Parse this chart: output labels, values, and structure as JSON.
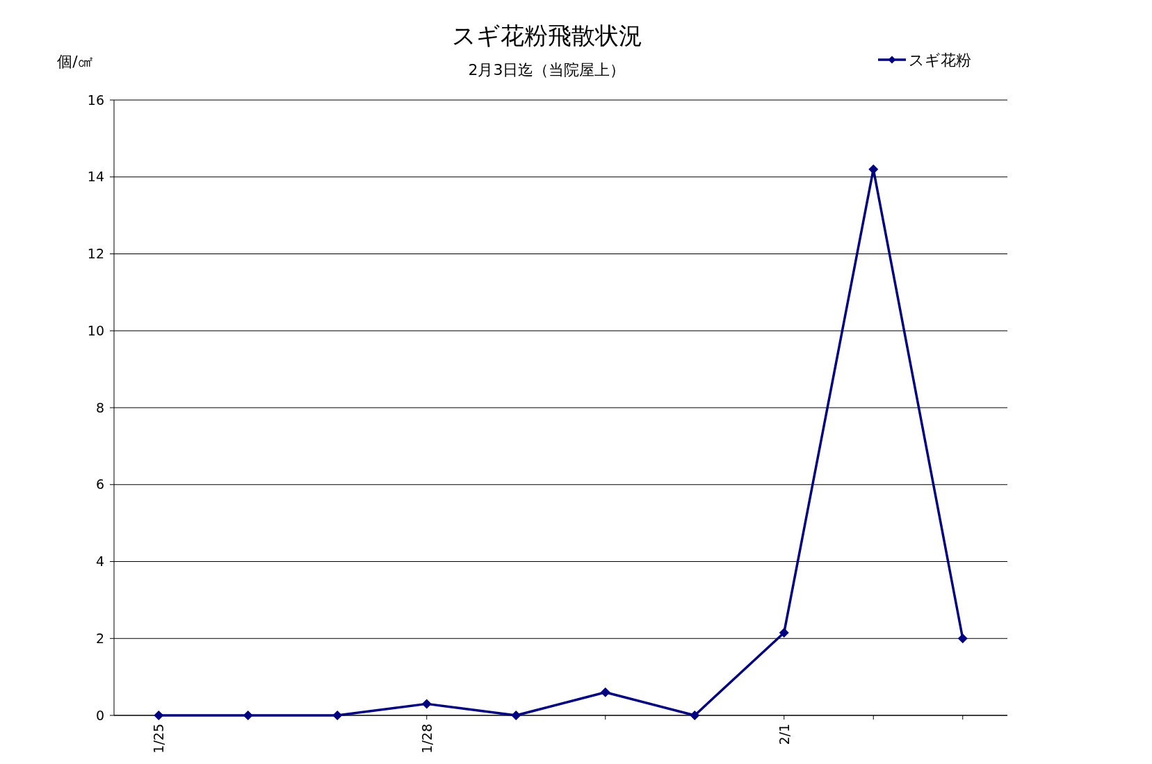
{
  "chart_data": {
    "type": "line",
    "title": "スギ花粉飛散状況",
    "subtitle": "2月3日迄（当院屋上）",
    "ylabel": "個/㎠",
    "categories": [
      "1/25",
      null,
      null,
      "1/28",
      null,
      null,
      null,
      "2/1",
      null,
      null
    ],
    "series": [
      {
        "name": "スギ花粉",
        "color": "#000080",
        "values": [
          0,
          0,
          0,
          0.3,
          0,
          0.6,
          0,
          2.15,
          14.2,
          2.0
        ]
      }
    ],
    "ylim": [
      0,
      16
    ],
    "yticks": [
      0,
      2,
      4,
      6,
      8,
      10,
      12,
      14,
      16
    ],
    "grid": "y",
    "legend": "top right",
    "marker": "diamond",
    "line_style": "solid"
  }
}
